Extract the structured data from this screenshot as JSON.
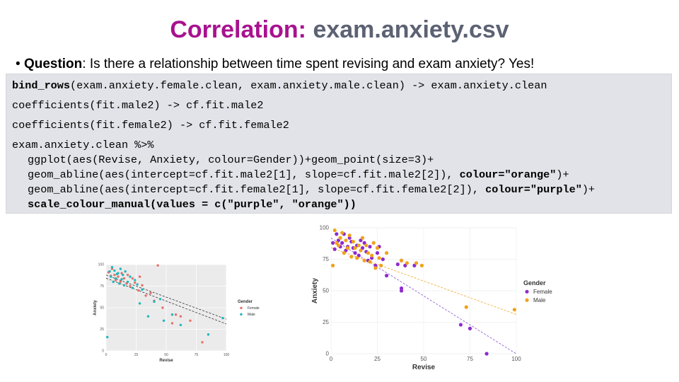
{
  "slide": {
    "title_part1": "Correlation:",
    "title_part2": "exam.anxiety.csv",
    "question": {
      "bullet": "•",
      "label": "Question",
      "text": ": Is there a relationship between time spent revising and exam anxiety? Yes!"
    }
  },
  "code": {
    "line1_fn": "bind_rows",
    "line1_rest": "(exam.anxiety.female.clean, exam.anxiety.male.clean) -> exam.anxiety.clean",
    "line2": "coefficients(fit.male2) -> cf.fit.male2",
    "line3": "coefficients(fit.female2) -> cf.fit.female2",
    "line4": "exam.anxiety.clean %>%",
    "line5": "ggplot(aes(Revise, Anxiety, colour=Gender))+geom_point(size=3)+",
    "line6_a": "geom_abline(aes(intercept=cf.fit.male2[1], slope=cf.fit.male2[2]), ",
    "line6_b": "colour=\"orange\"",
    "line6_c": ")+",
    "line7_a": "geom_abline(aes(intercept=cf.fit.female2[1], slope=cf.fit.female2[2]), ",
    "line7_b": "colour=\"purple\"",
    "line7_c": ")+",
    "line8": "scale_colour_manual(values = c(\"purple\", \"orange\"))"
  },
  "chart_data": [
    {
      "type": "scatter",
      "title": "",
      "xlabel": "Revise",
      "ylabel": "Anxiety",
      "xlim": [
        0,
        100
      ],
      "ylim": [
        0,
        100
      ],
      "xticks": [
        "0",
        "25",
        "50",
        "75",
        "100"
      ],
      "yticks": [
        "0",
        "25",
        "50",
        "75",
        "100"
      ],
      "legend": {
        "title": "Gender",
        "entries": [
          "Female",
          "Male"
        ],
        "position": "right"
      },
      "colors": {
        "female": "#e8706a",
        "male": "#1fb7bb",
        "line": "#333333",
        "panel": "#ebebeb",
        "grid": "#ffffff"
      },
      "lines": [
        {
          "name": "Female fit",
          "intercept": 87.8,
          "slope": -0.51
        },
        {
          "name": "Male fit",
          "intercept": 84.2,
          "slope": -0.53
        }
      ],
      "series": [
        {
          "name": "Female",
          "points": [
            [
              2,
              91
            ],
            [
              4,
              87
            ],
            [
              5,
              95
            ],
            [
              7,
              88
            ],
            [
              8,
              82
            ],
            [
              10,
              86
            ],
            [
              12,
              80
            ],
            [
              13,
              90
            ],
            [
              15,
              84
            ],
            [
              17,
              78
            ],
            [
              18,
              88
            ],
            [
              20,
              75
            ],
            [
              22,
              84
            ],
            [
              24,
              79
            ],
            [
              27,
              70
            ],
            [
              28,
              86
            ],
            [
              30,
              76
            ],
            [
              33,
              64
            ],
            [
              37,
              67
            ],
            [
              40,
              58
            ],
            [
              43,
              99
            ],
            [
              47,
              50
            ],
            [
              55,
              32
            ],
            [
              58,
              42
            ],
            [
              62,
              40
            ],
            [
              70,
              35
            ],
            [
              80,
              10
            ]
          ]
        },
        {
          "name": "Male",
          "points": [
            [
              1,
              16
            ],
            [
              3,
              92
            ],
            [
              4,
              86
            ],
            [
              5,
              97
            ],
            [
              6,
              80
            ],
            [
              7,
              93
            ],
            [
              8,
              84
            ],
            [
              9,
              89
            ],
            [
              10,
              90
            ],
            [
              11,
              78
            ],
            [
              12,
              95
            ],
            [
              13,
              83
            ],
            [
              14,
              88
            ],
            [
              15,
              76
            ],
            [
              16,
              92
            ],
            [
              18,
              80
            ],
            [
              20,
              86
            ],
            [
              22,
              73
            ],
            [
              24,
              82
            ],
            [
              26,
              77
            ],
            [
              28,
              55
            ],
            [
              30,
              71
            ],
            [
              35,
              40
            ],
            [
              40,
              57
            ],
            [
              45,
              60
            ],
            [
              48,
              35
            ],
            [
              55,
              42
            ],
            [
              62,
              30
            ],
            [
              85,
              19
            ],
            [
              97,
              38
            ]
          ]
        }
      ]
    },
    {
      "type": "scatter",
      "title": "",
      "xlabel": "Revise",
      "ylabel": "Anxiety",
      "xlim": [
        0,
        100
      ],
      "ylim": [
        0,
        100
      ],
      "xticks": [
        "0",
        "25",
        "50",
        "75",
        "100"
      ],
      "yticks": [
        "0",
        "25",
        "50",
        "75",
        "100"
      ],
      "legend": {
        "title": "Gender",
        "entries": [
          "Female",
          "Male"
        ],
        "position": "right"
      },
      "colors": {
        "female": "#8e2bd0",
        "male": "#f0a21a",
        "female_line": "#a070dd",
        "male_line": "#f3b84c",
        "panel": "#ffffff",
        "grid": "#eeeeee"
      },
      "lines": [
        {
          "name": "Female fit",
          "intercept": 91.9,
          "slope": -0.92,
          "color_key": "female_line"
        },
        {
          "name": "Male fit",
          "intercept": 84.2,
          "slope": -0.53,
          "color_key": "male_line"
        }
      ],
      "series": [
        {
          "name": "Female",
          "points": [
            [
              1,
              88
            ],
            [
              2,
              83
            ],
            [
              3,
              95
            ],
            [
              4,
              90
            ],
            [
              5,
              85
            ],
            [
              6,
              88
            ],
            [
              7,
              95
            ],
            [
              8,
              82
            ],
            [
              9,
              85
            ],
            [
              10,
              92
            ],
            [
              11,
              89
            ],
            [
              12,
              84
            ],
            [
              13,
              80
            ],
            [
              14,
              86
            ],
            [
              15,
              78
            ],
            [
              16,
              90
            ],
            [
              17,
              84
            ],
            [
              18,
              88
            ],
            [
              19,
              81
            ],
            [
              20,
              74
            ],
            [
              21,
              85
            ],
            [
              22,
              76
            ],
            [
              24,
              70
            ],
            [
              25,
              80
            ],
            [
              26,
              85
            ],
            [
              28,
              75
            ],
            [
              30,
              62
            ],
            [
              36,
              71
            ],
            [
              38,
              74
            ],
            [
              38,
              50
            ],
            [
              38,
              52
            ],
            [
              40,
              70
            ],
            [
              45,
              70
            ],
            [
              70,
              23
            ],
            [
              75,
              20
            ],
            [
              84,
              0
            ]
          ]
        },
        {
          "name": "Male",
          "points": [
            [
              1,
              70
            ],
            [
              2,
              98
            ],
            [
              3,
              88
            ],
            [
              4,
              86
            ],
            [
              5,
              92
            ],
            [
              6,
              96
            ],
            [
              7,
              80
            ],
            [
              8,
              90
            ],
            [
              9,
              84
            ],
            [
              10,
              94
            ],
            [
              11,
              77
            ],
            [
              12,
              89
            ],
            [
              13,
              84
            ],
            [
              14,
              76
            ],
            [
              15,
              86
            ],
            [
              16,
              82
            ],
            [
              17,
              92
            ],
            [
              18,
              74
            ],
            [
              19,
              86
            ],
            [
              20,
              80
            ],
            [
              21,
              73
            ],
            [
              22,
              78
            ],
            [
              23,
              88
            ],
            [
              24,
              68
            ],
            [
              25,
              84
            ],
            [
              26,
              76
            ],
            [
              27,
              70
            ],
            [
              30,
              80
            ],
            [
              38,
              74
            ],
            [
              41,
              72
            ],
            [
              46,
              72
            ],
            [
              49,
              70
            ],
            [
              73,
              37
            ],
            [
              99,
              35
            ]
          ]
        }
      ]
    }
  ]
}
